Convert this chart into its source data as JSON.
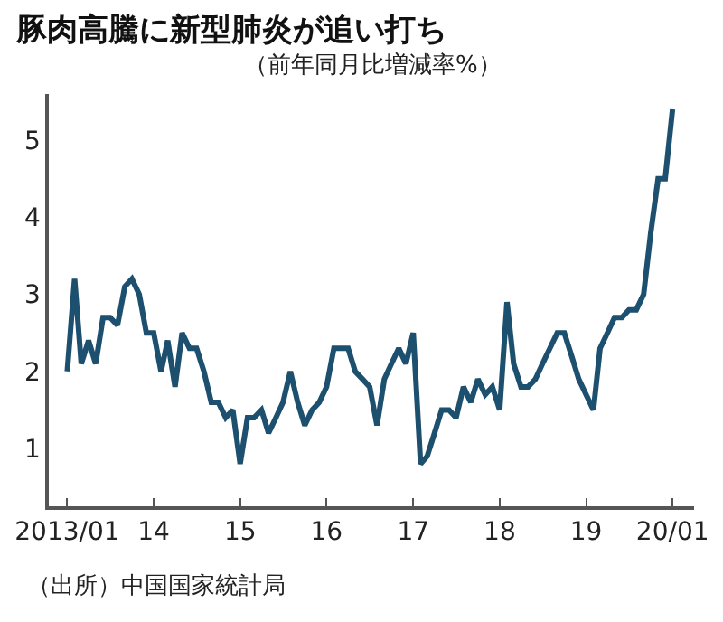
{
  "chart_data": {
    "type": "line",
    "title": "豚肉高騰に新型肺炎が追い打ち",
    "subtitle": "（前年同月比増減率%）",
    "x": [
      "2013-01",
      "2013-02",
      "2013-03",
      "2013-04",
      "2013-05",
      "2013-06",
      "2013-07",
      "2013-08",
      "2013-09",
      "2013-10",
      "2013-11",
      "2013-12",
      "2014-01",
      "2014-02",
      "2014-03",
      "2014-04",
      "2014-05",
      "2014-06",
      "2014-07",
      "2014-08",
      "2014-09",
      "2014-10",
      "2014-11",
      "2014-12",
      "2015-01",
      "2015-02",
      "2015-03",
      "2015-04",
      "2015-05",
      "2015-06",
      "2015-07",
      "2015-08",
      "2015-09",
      "2015-10",
      "2015-11",
      "2015-12",
      "2016-01",
      "2016-02",
      "2016-03",
      "2016-04",
      "2016-05",
      "2016-06",
      "2016-07",
      "2016-08",
      "2016-09",
      "2016-10",
      "2016-11",
      "2016-12",
      "2017-01",
      "2017-02",
      "2017-03",
      "2017-04",
      "2017-05",
      "2017-06",
      "2017-07",
      "2017-08",
      "2017-09",
      "2017-10",
      "2017-11",
      "2017-12",
      "2018-01",
      "2018-02",
      "2018-03",
      "2018-04",
      "2018-05",
      "2018-06",
      "2018-07",
      "2018-08",
      "2018-09",
      "2018-10",
      "2018-11",
      "2018-12",
      "2019-01",
      "2019-02",
      "2019-03",
      "2019-04",
      "2019-05",
      "2019-06",
      "2019-07",
      "2019-08",
      "2019-09",
      "2019-10",
      "2019-11",
      "2019-12",
      "2020-01"
    ],
    "series": [
      {
        "color": "#1d4f6e",
        "values": [
          2.0,
          3.2,
          2.1,
          2.4,
          2.1,
          2.7,
          2.7,
          2.6,
          3.1,
          3.2,
          3.0,
          2.5,
          2.5,
          2.0,
          2.4,
          1.8,
          2.5,
          2.3,
          2.3,
          2.0,
          1.6,
          1.6,
          1.4,
          1.5,
          0.8,
          1.4,
          1.4,
          1.5,
          1.2,
          1.4,
          1.6,
          2.0,
          1.6,
          1.3,
          1.5,
          1.6,
          1.8,
          2.3,
          2.3,
          2.3,
          2.0,
          1.9,
          1.8,
          1.3,
          1.9,
          2.1,
          2.3,
          2.1,
          2.5,
          0.8,
          0.9,
          1.2,
          1.5,
          1.5,
          1.4,
          1.8,
          1.6,
          1.9,
          1.7,
          1.8,
          1.5,
          2.9,
          2.1,
          1.8,
          1.8,
          1.9,
          2.1,
          2.3,
          2.5,
          2.5,
          2.2,
          1.9,
          1.7,
          1.5,
          2.3,
          2.5,
          2.7,
          2.7,
          2.8,
          2.8,
          3.0,
          3.8,
          4.5,
          4.5,
          5.4
        ]
      }
    ],
    "xlim": [
      "2012-10-15",
      "2020-04-01"
    ],
    "xticks": [
      {
        "value": "2013-01",
        "label": "2013/01"
      },
      {
        "value": "2014-01",
        "label": "14"
      },
      {
        "value": "2015-01",
        "label": "15"
      },
      {
        "value": "2016-01",
        "label": "16"
      },
      {
        "value": "2017-01",
        "label": "17"
      },
      {
        "value": "2018-01",
        "label": "18"
      },
      {
        "value": "2019-01",
        "label": "19"
      },
      {
        "value": "2020-01",
        "label": "20/01"
      }
    ],
    "ylim": [
      0.25,
      5.6
    ],
    "yticks": [
      1,
      2,
      3,
      4,
      5
    ],
    "marker": "none",
    "line_style": "solid",
    "annotations": [
      "（出所）中国国家統計局"
    ]
  }
}
